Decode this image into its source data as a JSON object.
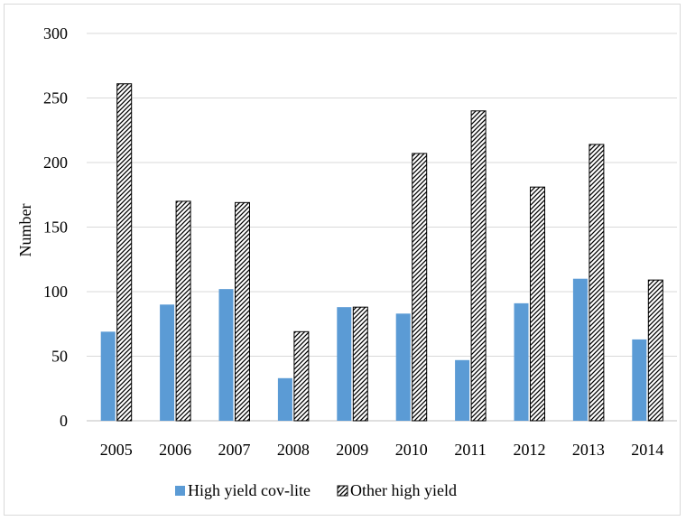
{
  "chart_data": {
    "type": "bar",
    "title": "",
    "xlabel": "",
    "ylabel": "Number",
    "ylim": [
      0,
      300
    ],
    "yticks": [
      0,
      50,
      100,
      150,
      200,
      250,
      300
    ],
    "grid": true,
    "legend_position": "bottom",
    "categories": [
      "2005",
      "2006",
      "2007",
      "2008",
      "2009",
      "2010",
      "2011",
      "2012",
      "2013",
      "2014"
    ],
    "series": [
      {
        "name": "High yield cov-lite",
        "color": "#5b9bd5",
        "fill": "solid",
        "values": [
          69,
          90,
          102,
          33,
          88,
          83,
          47,
          91,
          110,
          63
        ]
      },
      {
        "name": "Other high yield",
        "color": "#000000",
        "fill": "hatched",
        "values": [
          261,
          170,
          169,
          69,
          88,
          207,
          240,
          181,
          214,
          109
        ]
      }
    ]
  }
}
